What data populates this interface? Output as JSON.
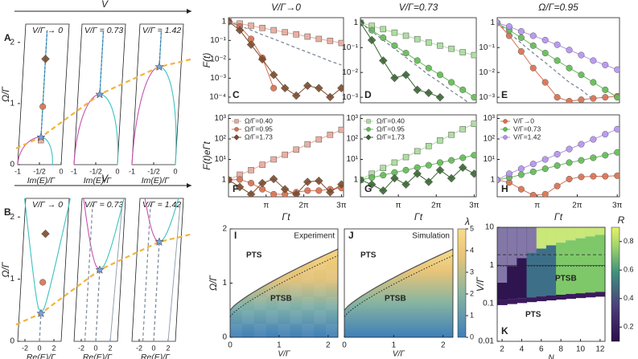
{
  "chart_data": [
    {
      "type": "spectrum",
      "panel": "A",
      "header": "V",
      "subtitles": [
        "V/Γ → 0",
        "V/Γ = 0.73",
        "V/Γ = 1.42"
      ],
      "ylabel": "Ω/Γ",
      "ylim": [
        0,
        2.3
      ],
      "yticks": [
        0,
        1,
        2
      ],
      "xlabel": "Im(E)/Γ",
      "xlim": [
        -1,
        0
      ],
      "xticks": [
        -1,
        {
          "value": -0.5,
          "label": "-1/2"
        },
        0
      ],
      "markers": [
        1.73,
        0.95,
        0.4
      ]
    },
    {
      "type": "spectrum",
      "panel": "B",
      "header": "V",
      "subtitles": [
        "V/Γ → 0",
        "V/Γ = 0.73",
        "V/Γ = 1.42"
      ],
      "ylabel": "Ω/Γ",
      "ylim": [
        0,
        2.3
      ],
      "yticks": [
        0,
        1,
        2
      ],
      "xlabel": "Re(E)/Γ",
      "xlim": [
        -3,
        3
      ],
      "xticks": [
        -2,
        0,
        2
      ],
      "markers": [
        1.73,
        0.95,
        0.4
      ]
    },
    {
      "type": "line",
      "panel": "C",
      "title": "V/Γ→0",
      "ylabel": "F(t)",
      "log": true,
      "x": [
        0,
        0.942,
        1.885,
        2.827,
        3.77,
        4.712,
        5.655,
        6.597,
        7.54,
        8.482,
        9.425
      ],
      "xlim": [
        0,
        9.6
      ],
      "ylim": [
        5e-05,
        1.6
      ],
      "yticks": [
        1,
        {
          "value": 0.1,
          "label": "10⁻¹"
        },
        {
          "value": 0.01,
          "label": "10⁻²"
        },
        {
          "value": 0.001,
          "label": "10⁻³"
        },
        {
          "value": 0.0001,
          "label": "10⁻⁴"
        }
      ],
      "series": [
        {
          "color": "#e8a89a",
          "marker": "square",
          "values": [
            1,
            0.78,
            0.6,
            0.46,
            0.35,
            0.27,
            0.21,
            0.16,
            0.12,
            0.095,
            0.073
          ]
        },
        {
          "color": "#d9704f",
          "marker": "circle",
          "values": [
            1,
            0.55,
            0.12,
            0.012,
            0.0003,
            null,
            null,
            null,
            null,
            null,
            null
          ]
        },
        {
          "color": "#7b4a2b",
          "marker": "diamond",
          "values": [
            1,
            0.35,
            0.06,
            0.01,
            0.0015,
            0.0003,
            0.00012,
            0.0004,
            0.0003,
            0.0001,
            0.0003
          ]
        },
        {
          "color": "#7d8b99",
          "marker": "none",
          "dash": true,
          "values": [
            1,
            0.6,
            0.35,
            0.2,
            0.12,
            0.07,
            0.04,
            0.024,
            0.014,
            0.008,
            0.005
          ]
        }
      ]
    },
    {
      "type": "line",
      "panel": "D",
      "title": "V/Γ=0.73",
      "log": true,
      "x": [
        0,
        0.942,
        1.885,
        2.827,
        3.77,
        4.712,
        5.655,
        6.597,
        7.54,
        8.482,
        9.425
      ],
      "xlim": [
        0,
        9.6
      ],
      "ylim": [
        0.0006,
        1.6
      ],
      "yticks": [
        1,
        {
          "value": 0.1,
          "label": "10⁻¹"
        },
        {
          "value": 0.01,
          "label": "10⁻²"
        },
        {
          "value": 0.001,
          "label": "10⁻³"
        }
      ],
      "series": [
        {
          "color": "#a9dc9b",
          "marker": "square",
          "values": [
            1,
            0.75,
            0.55,
            0.4,
            0.3,
            0.22,
            0.16,
            0.12,
            0.09,
            0.065,
            0.05
          ]
        },
        {
          "color": "#62bb55",
          "marker": "circle",
          "values": [
            1,
            0.5,
            0.25,
            0.12,
            0.06,
            0.03,
            0.015,
            0.008,
            0.004,
            0.002,
            0.001
          ]
        },
        {
          "color": "#3b6534",
          "marker": "diamond",
          "values": [
            1,
            0.2,
            0.03,
            0.006,
            0.008,
            0.002,
            0.0015,
            0.001,
            null,
            null,
            null
          ]
        },
        {
          "color": "#7d8b99",
          "marker": "none",
          "dash": true,
          "values": [
            1,
            0.45,
            0.2,
            0.09,
            0.04,
            0.018,
            0.008,
            0.004,
            0.0018,
            0.0009,
            0.0004
          ]
        }
      ]
    },
    {
      "type": "line",
      "panel": "E",
      "title": "Ω/Γ=0.95",
      "log": true,
      "x": [
        0,
        0.942,
        1.885,
        2.827,
        3.77,
        4.712,
        5.655,
        6.597,
        7.54,
        8.482,
        9.425
      ],
      "xlim": [
        0,
        9.6
      ],
      "ylim": [
        0.0006,
        1.6
      ],
      "yticks": [
        1,
        {
          "value": 0.1,
          "label": "10⁻¹"
        },
        {
          "value": 0.01,
          "label": "10⁻²"
        },
        {
          "value": 0.001,
          "label": "10⁻³"
        }
      ],
      "series": [
        {
          "color": "#d9704f",
          "marker": "circle",
          "values": [
            1,
            0.3,
            0.07,
            0.015,
            0.004,
            0.001,
            0.0007,
            0.0008,
            0.0009,
            0.001,
            0.0011
          ]
        },
        {
          "color": "#62bb55",
          "marker": "circle",
          "values": [
            1,
            0.5,
            0.25,
            0.12,
            0.06,
            0.03,
            0.015,
            0.008,
            0.004,
            0.002,
            0.001
          ]
        },
        {
          "color": "#b594ee",
          "marker": "circle",
          "values": [
            1,
            0.7,
            0.45,
            0.3,
            0.2,
            0.13,
            0.08,
            0.05,
            0.03,
            0.02,
            0.013
          ]
        },
        {
          "color": "#7d8b99",
          "marker": "none",
          "dash": true,
          "values": [
            1,
            0.4,
            0.15,
            0.06,
            0.025,
            0.01,
            0.004,
            0.002,
            0.0008,
            null,
            null
          ]
        }
      ]
    },
    {
      "type": "line",
      "panel": "F",
      "ylabel": "F(t)eΓt",
      "xlabel": "Γt",
      "log": true,
      "legend": "upper left",
      "x": [
        0,
        0.942,
        1.885,
        2.827,
        3.77,
        4.712,
        5.655,
        6.597,
        7.54,
        8.482,
        9.425
      ],
      "xlim": [
        0,
        9.6
      ],
      "xticks": [
        {
          "value": 3.1416,
          "label": "π"
        },
        {
          "value": 6.2832,
          "label": "2π"
        },
        {
          "value": 9.4248,
          "label": "3π"
        }
      ],
      "ylim": [
        0.15,
        1500
      ],
      "yticks": [
        1,
        {
          "value": 10,
          "label": "10¹"
        },
        {
          "value": 100,
          "label": "10²"
        },
        {
          "value": 1000,
          "label": "10³"
        }
      ],
      "series": [
        {
          "name": "Ω/Γ=0.40",
          "color": "#e8a89a",
          "marker": "square",
          "values": [
            1,
            1.8,
            3,
            5.5,
            10,
            17,
            30,
            55,
            95,
            160,
            280
          ]
        },
        {
          "name": "Ω/Γ=0.95",
          "color": "#d9704f",
          "marker": "circle",
          "values": [
            1,
            1.05,
            0.7,
            0.35,
            0.2,
            0.2,
            0.25,
            0.3,
            0.3,
            0.35,
            0.4
          ]
        },
        {
          "name": "Ω/Γ=1.73",
          "color": "#7b4a2b",
          "marker": "diamond",
          "values": [
            1,
            0.45,
            0.2,
            0.7,
            1.1,
            0.35,
            0.2,
            0.8,
            0.9,
            0.25,
            0.6
          ]
        }
      ]
    },
    {
      "type": "line",
      "panel": "G",
      "xlabel": "Γt",
      "log": true,
      "legend": "upper left",
      "x": [
        0,
        0.942,
        1.885,
        2.827,
        3.77,
        4.712,
        5.655,
        6.597,
        7.54,
        8.482,
        9.425
      ],
      "xlim": [
        0,
        9.6
      ],
      "xticks": [
        {
          "value": 3.1416,
          "label": "π"
        },
        {
          "value": 6.2832,
          "label": "2π"
        },
        {
          "value": 9.4248,
          "label": "3π"
        }
      ],
      "ylim": [
        0.15,
        1500
      ],
      "yticks": [
        1,
        {
          "value": 10,
          "label": "10¹"
        },
        {
          "value": 100,
          "label": "10²"
        },
        {
          "value": 1000,
          "label": "10³"
        }
      ],
      "series": [
        {
          "name": "Ω/Γ=0.40",
          "color": "#a9dc9b",
          "marker": "square",
          "values": [
            1,
            2,
            3.8,
            7,
            13,
            25,
            45,
            85,
            160,
            300,
            550
          ]
        },
        {
          "name": "Ω/Γ=0.95",
          "color": "#62bb55",
          "marker": "circle",
          "values": [
            1,
            1.3,
            1.7,
            2.3,
            3,
            4,
            5.2,
            7,
            9,
            12,
            16
          ]
        },
        {
          "name": "Ω/Γ=1.73",
          "color": "#3b6534",
          "marker": "diamond",
          "values": [
            1,
            0.6,
            0.3,
            1.2,
            0.6,
            2,
            0.8,
            3,
            1.2,
            4,
            2
          ]
        }
      ]
    },
    {
      "type": "line",
      "panel": "H",
      "xlabel": "Γt",
      "log": true,
      "legend": "upper left",
      "x": [
        0,
        0.942,
        1.885,
        2.827,
        3.77,
        4.712,
        5.655,
        6.597,
        7.54,
        8.482,
        9.425
      ],
      "xlim": [
        0,
        9.6
      ],
      "xticks": [
        {
          "value": 3.1416,
          "label": "π"
        },
        {
          "value": 6.2832,
          "label": "2π"
        },
        {
          "value": 9.4248,
          "label": "3π"
        }
      ],
      "ylim": [
        0.15,
        1500
      ],
      "yticks": [
        1,
        {
          "value": 10,
          "label": "10¹"
        },
        {
          "value": 100,
          "label": "10²"
        },
        {
          "value": 1000,
          "label": "10³"
        }
      ],
      "series": [
        {
          "name": "V/Γ→0",
          "color": "#d9704f",
          "marker": "circle",
          "values": [
            1,
            0.75,
            0.35,
            0.18,
            0.2,
            0.5,
            1.1,
            1.4,
            1.5,
            1.5,
            1.6
          ]
        },
        {
          "name": "V/Γ=0.73",
          "color": "#62bb55",
          "marker": "circle",
          "values": [
            1,
            1.3,
            1.8,
            2.5,
            3.5,
            5,
            7,
            9,
            12,
            16,
            22
          ]
        },
        {
          "name": "V/Γ=1.42",
          "color": "#b594ee",
          "marker": "circle",
          "values": [
            1,
            2,
            3.5,
            6,
            10,
            18,
            32,
            55,
            95,
            170,
            300
          ]
        }
      ]
    },
    {
      "type": "heatmap",
      "panel": "I",
      "label": "Experiment",
      "regions": [
        "PTS",
        "PTSB"
      ],
      "xlabel": "V/Γ",
      "xlim": [
        0,
        2.2
      ],
      "xticks": [
        0,
        1,
        2
      ],
      "ylabel": "Ω/Γ",
      "ylim": [
        0,
        2
      ],
      "yticks": [
        0,
        1,
        2
      ],
      "pixelated": true
    },
    {
      "type": "heatmap",
      "panel": "J",
      "label": "Simulation",
      "regions": [
        "PTS",
        "PTSB"
      ],
      "xlabel": "V/Γ",
      "xlim": [
        0,
        2.2
      ],
      "xticks": [
        0,
        1,
        2
      ],
      "ylim": [
        0,
        2
      ],
      "colorbar": {
        "label": "λ",
        "lim": [
          0,
          5
        ],
        "ticks": [
          0,
          1,
          2,
          3,
          4,
          5
        ]
      }
    },
    {
      "type": "stair",
      "panel": "K",
      "regions": [
        "PTS",
        "PTSB"
      ],
      "xlabel": "N",
      "xlim": [
        1.5,
        12.5
      ],
      "xticks": [
        2,
        4,
        6,
        8,
        10,
        12
      ],
      "ylabel": "V/Γ",
      "log": true,
      "ylim": [
        0.01,
        10
      ],
      "yticks": [
        0.01,
        0.1,
        1,
        10
      ],
      "colorbar": {
        "label": "R",
        "lim": [
          0.1,
          0.9
        ],
        "ticks": [
          0.2,
          0.4,
          0.6,
          0.8
        ]
      }
    }
  ]
}
